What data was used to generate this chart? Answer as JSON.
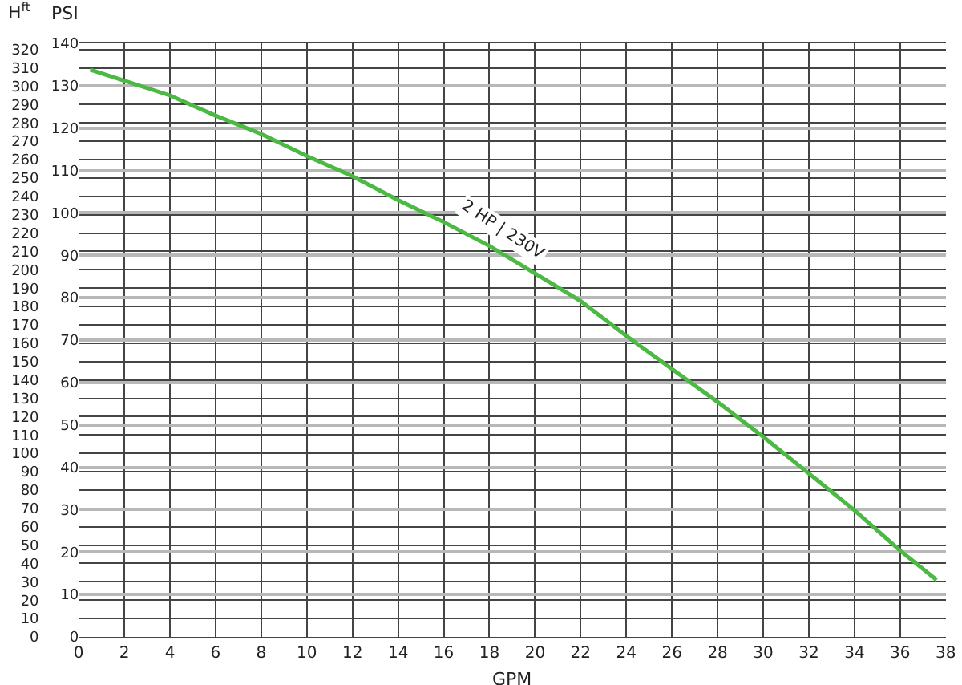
{
  "chart_data": {
    "type": "line",
    "xlabel": "GPM",
    "ylabel": "H$^{ft}$",
    "y2label": "PSI",
    "x": [
      0.5,
      2,
      4,
      6,
      8,
      10,
      12,
      14,
      16,
      18,
      20,
      22,
      24,
      26,
      28,
      30,
      32,
      34,
      36,
      37.6
    ],
    "series": [
      {
        "color": "#4cb944",
        "values": [
          309,
          303,
          295,
          284,
          274,
          262,
          251,
          238,
          226,
          213,
          198,
          183,
          164,
          146,
          128,
          109,
          89,
          69,
          47,
          31
        ]
      }
    ],
    "xlim": [
      0,
      38
    ],
    "xticks": [
      0,
      2,
      4,
      6,
      8,
      10,
      12,
      14,
      16,
      18,
      20,
      22,
      24,
      26,
      28,
      30,
      32,
      34,
      36,
      38
    ],
    "ylim": [
      0,
      323.4
    ],
    "yticks": [
      0,
      10,
      20,
      30,
      40,
      50,
      60,
      70,
      80,
      90,
      100,
      110,
      120,
      130,
      140,
      150,
      160,
      170,
      180,
      190,
      200,
      210,
      220,
      230,
      240,
      250,
      260,
      270,
      280,
      290,
      300,
      310,
      320
    ],
    "y2lim": [
      0,
      140
    ],
    "y2ticks": [
      0,
      10,
      20,
      30,
      40,
      50,
      60,
      70,
      80,
      90,
      100,
      110,
      120,
      130,
      140
    ],
    "annotations": [
      "2 HP | 230V"
    ],
    "grid": true,
    "marker": "none",
    "line_style": "solid"
  }
}
